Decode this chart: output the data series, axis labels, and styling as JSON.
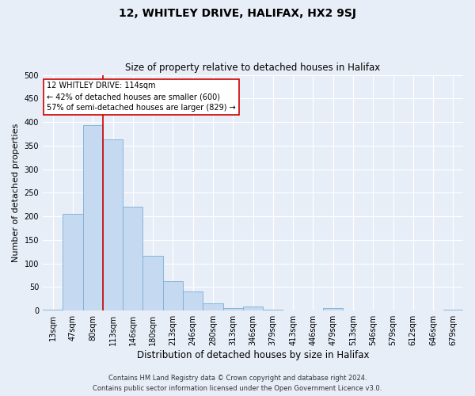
{
  "title": "12, WHITLEY DRIVE, HALIFAX, HX2 9SJ",
  "subtitle": "Size of property relative to detached houses in Halifax",
  "xlabel": "Distribution of detached houses by size in Halifax",
  "ylabel": "Number of detached properties",
  "bar_color": "#c5d9f0",
  "bar_edge_color": "#7bafd4",
  "categories": [
    "13sqm",
    "47sqm",
    "80sqm",
    "113sqm",
    "146sqm",
    "180sqm",
    "213sqm",
    "246sqm",
    "280sqm",
    "313sqm",
    "346sqm",
    "379sqm",
    "413sqm",
    "446sqm",
    "479sqm",
    "513sqm",
    "546sqm",
    "579sqm",
    "612sqm",
    "646sqm",
    "679sqm"
  ],
  "values": [
    2,
    205,
    393,
    363,
    220,
    117,
    63,
    40,
    15,
    5,
    8,
    2,
    0,
    0,
    6,
    0,
    0,
    0,
    0,
    0,
    2
  ],
  "vline_x_index": 3,
  "vline_color": "#cc0000",
  "annotation_line1": "12 WHITLEY DRIVE: 114sqm",
  "annotation_line2": "← 42% of detached houses are smaller (600)",
  "annotation_line3": "57% of semi-detached houses are larger (829) →",
  "annotation_box_color": "white",
  "annotation_box_edge": "#cc0000",
  "ylim": [
    0,
    500
  ],
  "yticks": [
    0,
    50,
    100,
    150,
    200,
    250,
    300,
    350,
    400,
    450,
    500
  ],
  "footer1": "Contains HM Land Registry data © Crown copyright and database right 2024.",
  "footer2": "Contains public sector information licensed under the Open Government Licence v3.0.",
  "bg_color": "#e8eef8",
  "plot_bg_color": "#e8eef8",
  "grid_color": "#ffffff",
  "title_fontsize": 10,
  "subtitle_fontsize": 8.5,
  "xlabel_fontsize": 8.5,
  "ylabel_fontsize": 8,
  "tick_fontsize": 7,
  "footer_fontsize": 6
}
